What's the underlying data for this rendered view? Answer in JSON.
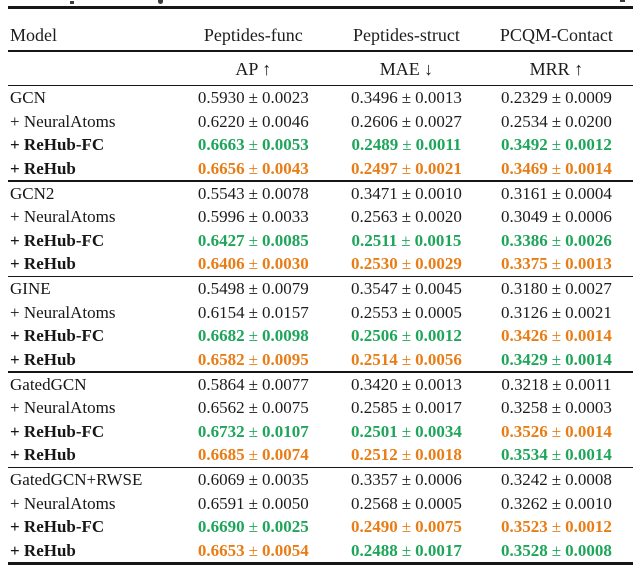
{
  "table": {
    "header": {
      "model_col": "Model",
      "datasets": [
        "Peptides-func",
        "Peptides-struct",
        "PCQM-Contact"
      ],
      "metrics": [
        "AP ↑",
        "MAE ↓",
        "MRR ↑"
      ]
    },
    "colors": {
      "plain": "#1c1c1c",
      "best": "#1ea55a",
      "second": "#e87d15"
    },
    "legend_semantics": {
      "best": "green bold",
      "second": "orange bold"
    },
    "groups": [
      {
        "rows": [
          {
            "label": "GCN",
            "bold": false,
            "cells": [
              [
                "0.5930",
                "0.0023",
                "plain"
              ],
              [
                "0.3496",
                "0.0013",
                "plain"
              ],
              [
                "0.2329",
                "0.0009",
                "plain"
              ]
            ]
          },
          {
            "label": "+ NeuralAtoms",
            "bold": false,
            "cells": [
              [
                "0.6220",
                "0.0046",
                "plain"
              ],
              [
                "0.2606",
                "0.0027",
                "plain"
              ],
              [
                "0.2534",
                "0.0200",
                "plain"
              ]
            ]
          },
          {
            "label": "+ ReHub-FC",
            "bold": true,
            "cells": [
              [
                "0.6663",
                "0.0053",
                "best"
              ],
              [
                "0.2489",
                "0.0011",
                "best"
              ],
              [
                "0.3492",
                "0.0012",
                "best"
              ]
            ]
          },
          {
            "label": "+ ReHub",
            "bold": true,
            "cells": [
              [
                "0.6656",
                "0.0043",
                "second"
              ],
              [
                "0.2497",
                "0.0021",
                "second"
              ],
              [
                "0.3469",
                "0.0014",
                "second"
              ]
            ]
          }
        ]
      },
      {
        "rows": [
          {
            "label": "GCN2",
            "bold": false,
            "cells": [
              [
                "0.5543",
                "0.0078",
                "plain"
              ],
              [
                "0.3471",
                "0.0010",
                "plain"
              ],
              [
                "0.3161",
                "0.0004",
                "plain"
              ]
            ]
          },
          {
            "label": "+ NeuralAtoms",
            "bold": false,
            "cells": [
              [
                "0.5996",
                "0.0033",
                "plain"
              ],
              [
                "0.2563",
                "0.0020",
                "plain"
              ],
              [
                "0.3049",
                "0.0006",
                "plain"
              ]
            ]
          },
          {
            "label": "+ ReHub-FC",
            "bold": true,
            "cells": [
              [
                "0.6427",
                "0.0085",
                "best"
              ],
              [
                "0.2511",
                "0.0015",
                "best"
              ],
              [
                "0.3386",
                "0.0026",
                "best"
              ]
            ]
          },
          {
            "label": "+ ReHub",
            "bold": true,
            "cells": [
              [
                "0.6406",
                "0.0030",
                "second"
              ],
              [
                "0.2530",
                "0.0029",
                "second"
              ],
              [
                "0.3375",
                "0.0013",
                "second"
              ]
            ]
          }
        ]
      },
      {
        "rows": [
          {
            "label": "GINE",
            "bold": false,
            "cells": [
              [
                "0.5498",
                "0.0079",
                "plain"
              ],
              [
                "0.3547",
                "0.0045",
                "plain"
              ],
              [
                "0.3180",
                "0.0027",
                "plain"
              ]
            ]
          },
          {
            "label": "+ NeuralAtoms",
            "bold": false,
            "cells": [
              [
                "0.6154",
                "0.0157",
                "plain"
              ],
              [
                "0.2553",
                "0.0005",
                "plain"
              ],
              [
                "0.3126",
                "0.0021",
                "plain"
              ]
            ]
          },
          {
            "label": "+ ReHub-FC",
            "bold": true,
            "cells": [
              [
                "0.6682",
                "0.0098",
                "best"
              ],
              [
                "0.2506",
                "0.0012",
                "best"
              ],
              [
                "0.3426",
                "0.0014",
                "second"
              ]
            ]
          },
          {
            "label": "+ ReHub",
            "bold": true,
            "cells": [
              [
                "0.6582",
                "0.0095",
                "second"
              ],
              [
                "0.2514",
                "0.0056",
                "second"
              ],
              [
                "0.3429",
                "0.0014",
                "best"
              ]
            ]
          }
        ]
      },
      {
        "rows": [
          {
            "label": "GatedGCN",
            "bold": false,
            "cells": [
              [
                "0.5864",
                "0.0077",
                "plain"
              ],
              [
                "0.3420",
                "0.0013",
                "plain"
              ],
              [
                "0.3218",
                "0.0011",
                "plain"
              ]
            ]
          },
          {
            "label": "+ NeuralAtoms",
            "bold": false,
            "cells": [
              [
                "0.6562",
                "0.0075",
                "plain"
              ],
              [
                "0.2585",
                "0.0017",
                "plain"
              ],
              [
                "0.3258",
                "0.0003",
                "plain"
              ]
            ]
          },
          {
            "label": "+ ReHub-FC",
            "bold": true,
            "cells": [
              [
                "0.6732",
                "0.0107",
                "best"
              ],
              [
                "0.2501",
                "0.0034",
                "best"
              ],
              [
                "0.3526",
                "0.0014",
                "second"
              ]
            ]
          },
          {
            "label": "+ ReHub",
            "bold": true,
            "cells": [
              [
                "0.6685",
                "0.0074",
                "second"
              ],
              [
                "0.2512",
                "0.0018",
                "second"
              ],
              [
                "0.3534",
                "0.0014",
                "best"
              ]
            ]
          }
        ]
      },
      {
        "rows": [
          {
            "label": "GatedGCN+RWSE",
            "bold": false,
            "cells": [
              [
                "0.6069",
                "0.0035",
                "plain"
              ],
              [
                "0.3357",
                "0.0006",
                "plain"
              ],
              [
                "0.3242",
                "0.0008",
                "plain"
              ]
            ]
          },
          {
            "label": "+ NeuralAtoms",
            "bold": false,
            "cells": [
              [
                "0.6591",
                "0.0050",
                "plain"
              ],
              [
                "0.2568",
                "0.0005",
                "plain"
              ],
              [
                "0.3262",
                "0.0010",
                "plain"
              ]
            ]
          },
          {
            "label": "+ ReHub-FC",
            "bold": true,
            "cells": [
              [
                "0.6690",
                "0.0025",
                "best"
              ],
              [
                "0.2490",
                "0.0075",
                "second"
              ],
              [
                "0.3523",
                "0.0012",
                "second"
              ]
            ]
          },
          {
            "label": "+ ReHub",
            "bold": true,
            "cells": [
              [
                "0.6653",
                "0.0054",
                "second"
              ],
              [
                "0.2488",
                "0.0017",
                "best"
              ],
              [
                "0.3528",
                "0.0008",
                "best"
              ]
            ]
          }
        ]
      }
    ],
    "plus_minus": "±"
  }
}
